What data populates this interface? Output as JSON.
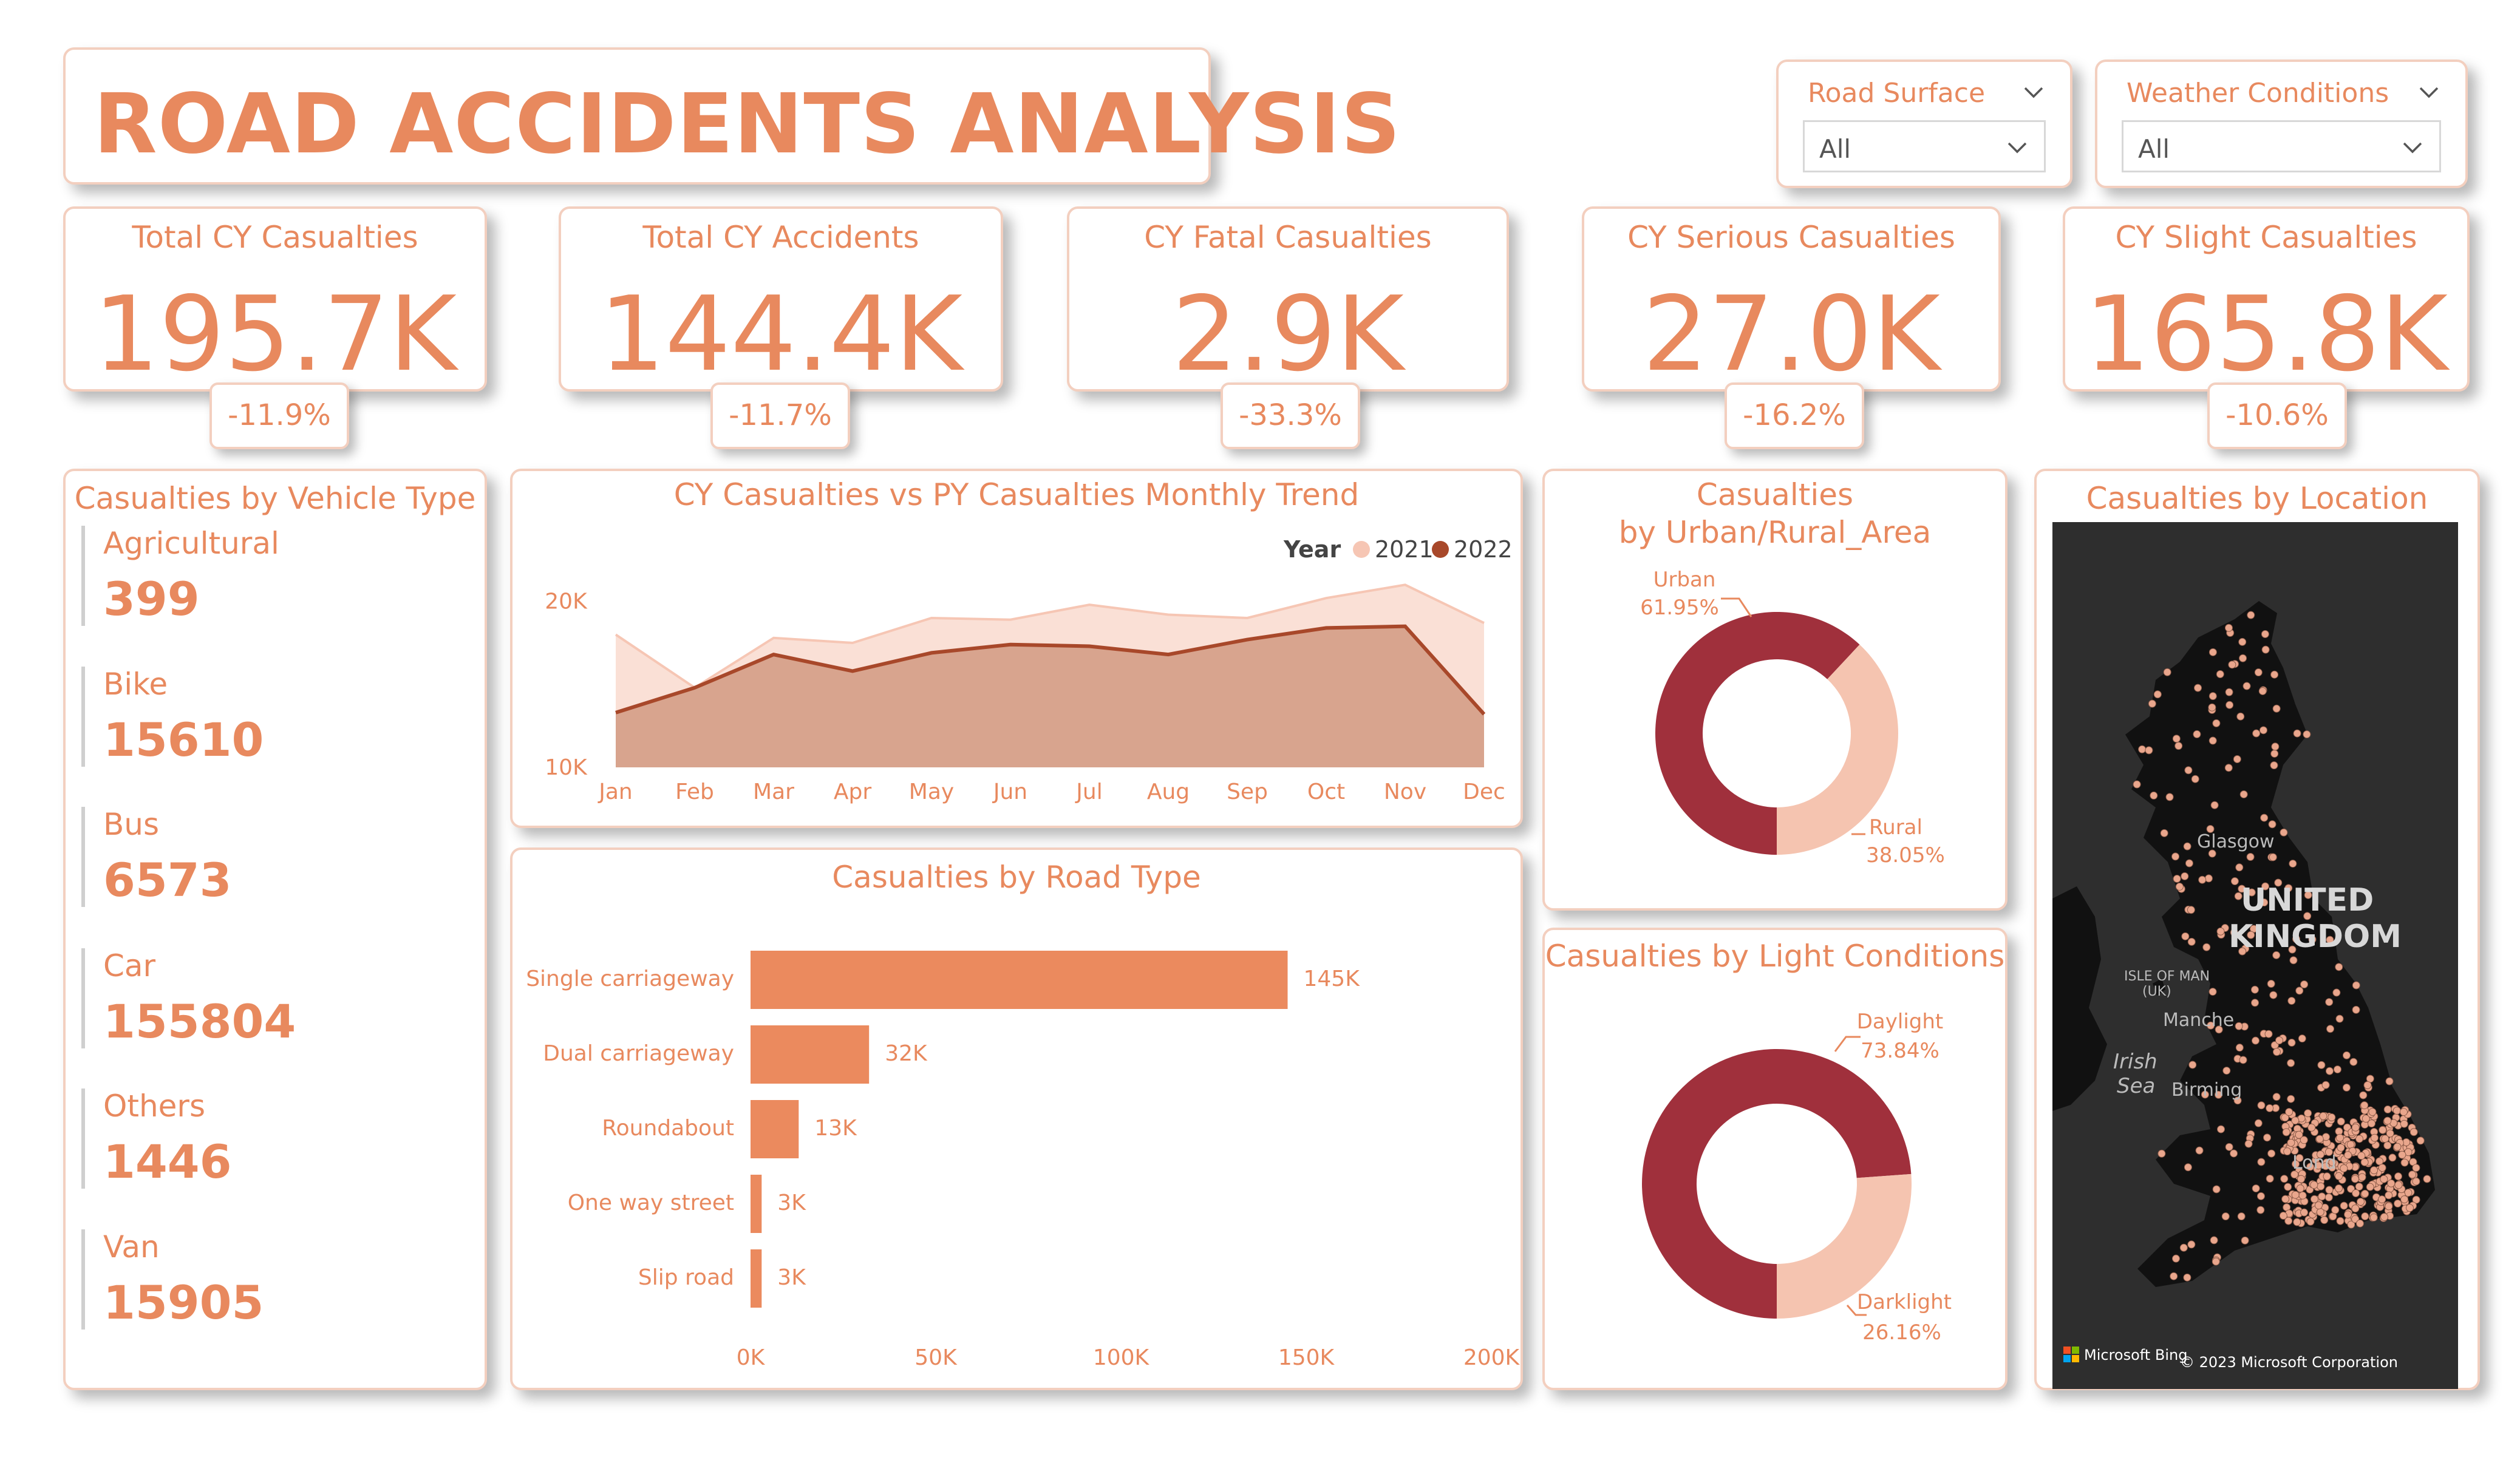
{
  "title": "ROAD ACCIDENTS ANALYSIS",
  "filters": [
    {
      "label": "Road Surface",
      "value": "All"
    },
    {
      "label": "Weather Conditions",
      "value": "All"
    }
  ],
  "kpis": [
    {
      "label": "Total CY Casualties",
      "value": "195.7K",
      "change": "-11.9%"
    },
    {
      "label": "Total CY Accidents",
      "value": "144.4K",
      "change": "-11.7%"
    },
    {
      "label": "CY Fatal Casualties",
      "value": "2.9K",
      "change": "-33.3%"
    },
    {
      "label": "CY Serious Casualties",
      "value": "27.0K",
      "change": "-16.2%"
    },
    {
      "label": "CY Slight Casualties",
      "value": "165.8K",
      "change": "-10.6%"
    }
  ],
  "vehicle_type": {
    "title": "Casualties by Vehicle Type",
    "items": [
      {
        "name": "Agricultural",
        "value": "399"
      },
      {
        "name": "Bike",
        "value": "15610"
      },
      {
        "name": "Bus",
        "value": "6573"
      },
      {
        "name": "Car",
        "value": "155804"
      },
      {
        "name": "Others",
        "value": "1446"
      },
      {
        "name": "Van",
        "value": "15905"
      }
    ]
  },
  "map": {
    "title": "Casualties by Location",
    "country_label_1": "UNITED",
    "country_label_2": "KINGDOM",
    "place_glasgow": "Glasgow",
    "place_isle_of_man": "ISLE OF MAN",
    "place_uk": "(UK)",
    "place_manchester": "Manche",
    "place_irish": "Irish",
    "place_sea": "Sea",
    "place_birmingham": "Birming",
    "place_london": "Lond",
    "brand": "Microsoft Bing",
    "copyright": "© 2023 Microsoft Corporation",
    "land_color": "#111111",
    "point_color": "#e9a68c"
  },
  "colors": {
    "accent": "#e8895e",
    "py_area": "#f6c6b4",
    "cy_line": "#a8482a",
    "cy_area": "#d6a08a",
    "donut_main": "#a0303c",
    "donut_secondary": "#f5c4b0",
    "bar": "#eb8a5e"
  },
  "chart_data": [
    {
      "id": "monthly_trend",
      "type": "area",
      "title": "CY Casualties vs PY Casualties Monthly Trend",
      "legend_title": "Year",
      "legend_position": "top-right",
      "categories": [
        "Jan",
        "Feb",
        "Mar",
        "Apr",
        "May",
        "Jun",
        "Jul",
        "Aug",
        "Sep",
        "Oct",
        "Nov",
        "Dec"
      ],
      "series": [
        {
          "name": "2021",
          "values": [
            18000,
            14800,
            17800,
            17500,
            19000,
            18900,
            19800,
            19200,
            19000,
            20200,
            21000,
            18700
          ]
        },
        {
          "name": "2022",
          "values": [
            13300,
            14800,
            16800,
            15800,
            16900,
            17400,
            17300,
            16800,
            17700,
            18400,
            18500,
            13200
          ]
        }
      ],
      "yticks": [
        10000,
        20000
      ],
      "ytick_labels": [
        "10K",
        "20K"
      ],
      "ylim": [
        10000,
        22000
      ],
      "grid": false
    },
    {
      "id": "road_type",
      "type": "bar",
      "orientation": "horizontal",
      "title": "Casualties by Road Type",
      "categories": [
        "Single carriageway",
        "Dual carriageway",
        "Roundabout",
        "One way street",
        "Slip road"
      ],
      "values": [
        145000,
        32000,
        13000,
        3000,
        3000
      ],
      "data_labels": [
        "145K",
        "32K",
        "13K",
        "3K",
        "3K"
      ],
      "xticks": [
        0,
        50000,
        100000,
        150000,
        200000
      ],
      "xtick_labels": [
        "0K",
        "50K",
        "100K",
        "150K",
        "200K"
      ],
      "xlim": [
        0,
        200000
      ]
    },
    {
      "id": "urban_rural",
      "type": "pie",
      "donut": true,
      "title": "Casualties by Urban/Rural_Area",
      "categories": [
        "Urban",
        "Rural"
      ],
      "values": [
        61.95,
        38.05
      ],
      "data_labels": [
        "61.95%",
        "38.05%"
      ]
    },
    {
      "id": "light_conditions",
      "type": "pie",
      "donut": true,
      "title": "Casualties by Light Conditions",
      "categories": [
        "Daylight",
        "Darklight"
      ],
      "values": [
        73.84,
        26.16
      ],
      "data_labels": [
        "73.84%",
        "26.16%"
      ]
    }
  ]
}
